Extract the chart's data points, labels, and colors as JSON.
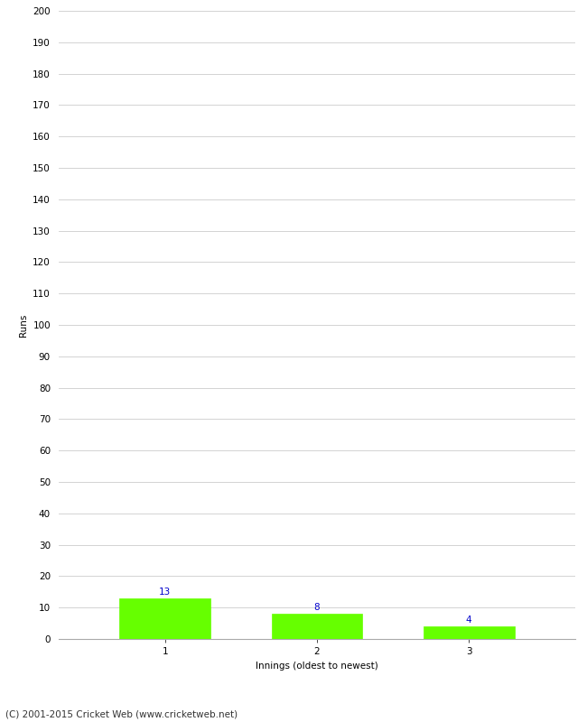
{
  "categories": [
    "1",
    "2",
    "3"
  ],
  "values": [
    13,
    8,
    4
  ],
  "bar_color": "#66ff00",
  "bar_edge_color": "#66ff00",
  "label_color": "#0000cc",
  "xlabel": "Innings (oldest to newest)",
  "ylabel": "Runs",
  "ylim": [
    0,
    200
  ],
  "yticks": [
    0,
    10,
    20,
    30,
    40,
    50,
    60,
    70,
    80,
    90,
    100,
    110,
    120,
    130,
    140,
    150,
    160,
    170,
    180,
    190,
    200
  ],
  "background_color": "#ffffff",
  "footer_text": "(C) 2001-2015 Cricket Web (www.cricketweb.net)",
  "grid_color": "#cccccc",
  "label_fontsize": 7.5,
  "axis_fontsize": 7.5,
  "footer_fontsize": 7.5,
  "bar_width": 0.6,
  "x_positions": [
    1,
    2,
    3
  ],
  "xlim": [
    0.3,
    3.7
  ]
}
